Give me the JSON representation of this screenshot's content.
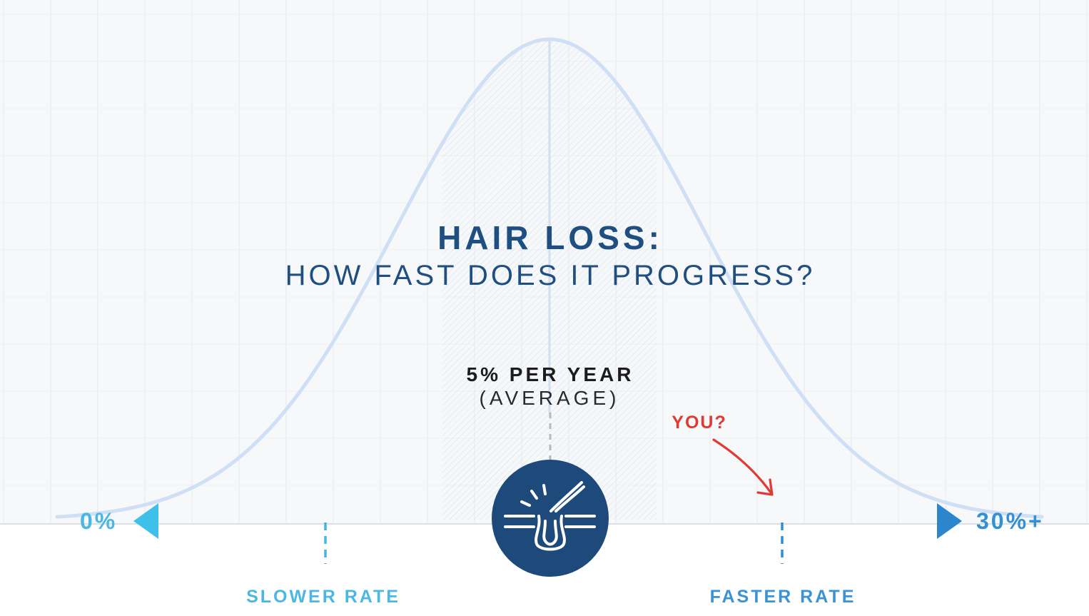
{
  "title": {
    "main": "HAIR LOSS:",
    "subtitle": "HOW FAST DOES IT PROGRESS?"
  },
  "average": {
    "value_label": "5% PER YEAR",
    "note": "(AVERAGE)"
  },
  "axis": {
    "min_label": "0%",
    "max_label": "30%+",
    "left_marker_label": "SLOWER RATE",
    "right_marker_label": "FASTER RATE"
  },
  "annotation": {
    "text": "YOU?"
  },
  "icon": {
    "name": "hair-follicle-icon"
  },
  "colors": {
    "title": "#1f4f80",
    "axis_left": "#3dbfea",
    "axis_right": "#2f8fd3",
    "marker_label": "#48b3de",
    "curve": "#cfe0f6",
    "badge": "#1d4a7a",
    "annotation": "#e03a34",
    "average_text": "#1c1c1c"
  }
}
